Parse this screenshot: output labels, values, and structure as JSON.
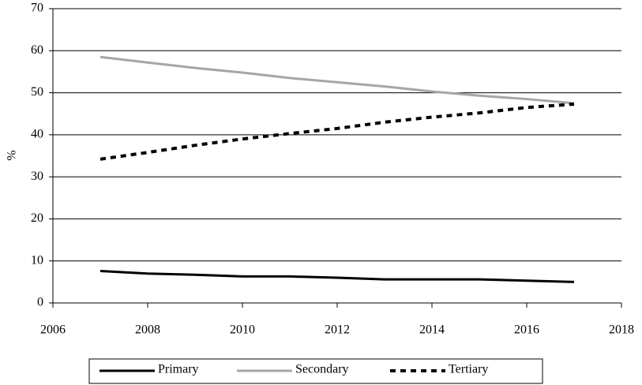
{
  "chart_data": {
    "type": "line",
    "y_label": "%",
    "x": [
      2007,
      2008,
      2009,
      2010,
      2011,
      2012,
      2013,
      2014,
      2015,
      2016,
      2017
    ],
    "series": [
      {
        "name": "Primary",
        "color": "#000000",
        "dash": "solid",
        "values": [
          7.6,
          7.0,
          6.7,
          6.3,
          6.3,
          6.0,
          5.6,
          5.6,
          5.6,
          5.3,
          5.0
        ]
      },
      {
        "name": "Secondary",
        "color": "#a6a6a6",
        "dash": "solid",
        "values": [
          58.5,
          57.2,
          55.9,
          54.8,
          53.5,
          52.5,
          51.5,
          50.3,
          49.3,
          48.5,
          47.5
        ]
      },
      {
        "name": "Tertiary",
        "color": "#000000",
        "dash": "dashed",
        "values": [
          34.2,
          35.8,
          37.5,
          39.0,
          40.3,
          41.5,
          43.0,
          44.2,
          45.2,
          46.5,
          47.3
        ]
      }
    ],
    "xlim": [
      2006,
      2018
    ],
    "xticks": [
      2006,
      2008,
      2010,
      2012,
      2014,
      2016,
      2018
    ],
    "ylim": [
      0,
      70
    ],
    "yticks": [
      0,
      10,
      20,
      30,
      40,
      50,
      60,
      70
    ],
    "grid": true,
    "legend": "bottom"
  }
}
